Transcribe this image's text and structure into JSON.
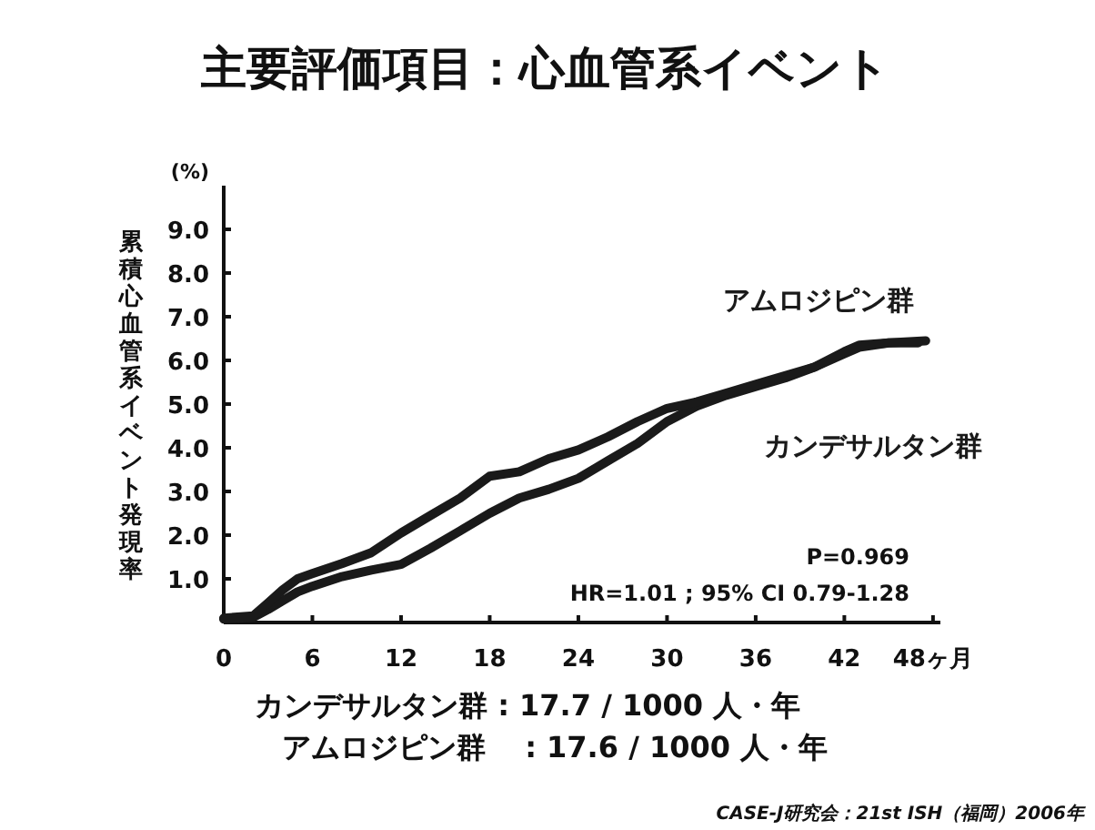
{
  "chart_data": {
    "type": "line",
    "title": "主要評価項目：心血管系イベント",
    "ylabel": "累積心血管系イベント発現率",
    "xlim": [
      0,
      48.5
    ],
    "ylim": [
      0,
      10
    ],
    "xticks": [
      0,
      6,
      12,
      18,
      24,
      30,
      36,
      42,
      {
        "value": 48,
        "label": "48ヶ月"
      }
    ],
    "yticks": [
      {
        "value": 1,
        "label": "1.0"
      },
      {
        "value": 2,
        "label": "2.0"
      },
      {
        "value": 3,
        "label": "3.0"
      },
      {
        "value": 4,
        "label": "4.0"
      },
      {
        "value": 5,
        "label": "5.0"
      },
      {
        "value": 6,
        "label": "6.0"
      },
      {
        "value": 7,
        "label": "7.0"
      },
      {
        "value": 8,
        "label": "8.0"
      },
      {
        "value": 9,
        "label": "9.0"
      }
    ],
    "line_style": "solid",
    "series": [
      {
        "name": "アムロジピン群",
        "color": "#1a1a1a",
        "x": [
          0,
          2,
          3,
          4,
          5,
          6,
          8,
          10,
          12,
          14,
          16,
          18,
          20,
          22,
          24,
          26,
          28,
          30,
          32,
          34,
          36,
          38,
          40,
          42,
          43,
          45,
          47.5
        ],
        "values": [
          0.08,
          0.12,
          0.3,
          0.5,
          0.7,
          0.83,
          1.05,
          1.2,
          1.33,
          1.7,
          2.1,
          2.5,
          2.85,
          3.05,
          3.3,
          3.7,
          4.1,
          4.6,
          4.95,
          5.2,
          5.4,
          5.6,
          5.85,
          6.15,
          6.3,
          6.4,
          6.45
        ]
      },
      {
        "name": "カンデサルタン群",
        "color": "#1a1a1a",
        "x": [
          0,
          2,
          3,
          4,
          5,
          6,
          8,
          10,
          12,
          14,
          16,
          18,
          20,
          22,
          24,
          26,
          28,
          30,
          32,
          34,
          36,
          38,
          40,
          42,
          43,
          45,
          47
        ],
        "values": [
          0.1,
          0.15,
          0.45,
          0.75,
          1.0,
          1.12,
          1.35,
          1.6,
          2.05,
          2.45,
          2.85,
          3.35,
          3.45,
          3.75,
          3.95,
          4.25,
          4.6,
          4.9,
          5.05,
          5.25,
          5.45,
          5.65,
          5.85,
          6.2,
          6.35,
          6.4,
          6.4
        ]
      }
    ],
    "annotations": [
      "(%)",
      "P=0.969",
      "HR=1.01 ; 95% CI 0.79-1.28",
      "カンデサルタン群 : 17.7 / 1000 人・年",
      "アムロジピン群　 : 17.6 / 1000 人・年",
      "CASE-J研究会：21st ISH（福岡）2006年"
    ]
  }
}
